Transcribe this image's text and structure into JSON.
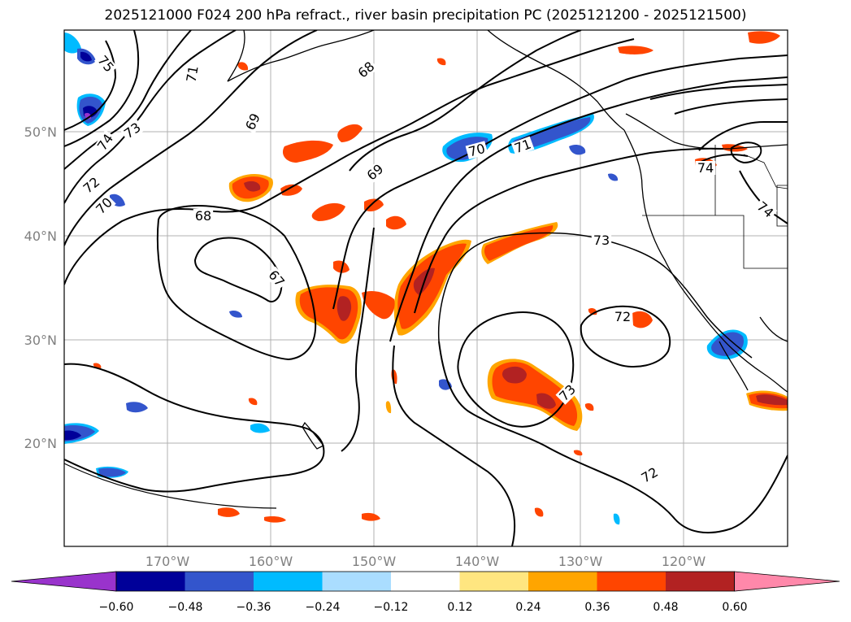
{
  "title": "2025121000 F024 200 hPa refract., river basin precipitation PC (2025121200 - 2025121500)",
  "latitude_labels": [
    "50°N",
    "40°N",
    "30°N",
    "20°N"
  ],
  "longitude_labels": [
    "170°W",
    "160°W",
    "150°W",
    "140°W",
    "130°W",
    "120°W"
  ],
  "colorbar": {
    "ticks": [
      "−0.60",
      "−0.48",
      "−0.36",
      "−0.24",
      "−0.12",
      "0.12",
      "0.24",
      "0.36",
      "0.48",
      "0.60"
    ],
    "colors": [
      "#9933cc",
      "#000099",
      "#3355cc",
      "#00bbff",
      "#aaddff",
      "#ffffff",
      "#ffe680",
      "#ffa500",
      "#ff4500",
      "#b22222",
      "#ff88aa"
    ]
  },
  "contour_labels": [
    "75",
    "71",
    "68",
    "69",
    "74",
    "73",
    "72",
    "70",
    "68",
    "67",
    "69",
    "70",
    "71",
    "73",
    "72",
    "73",
    "72",
    "74",
    "74"
  ],
  "colors": {
    "grid": "#b0b0b0",
    "contour": "#000000",
    "coast": "#000000"
  }
}
